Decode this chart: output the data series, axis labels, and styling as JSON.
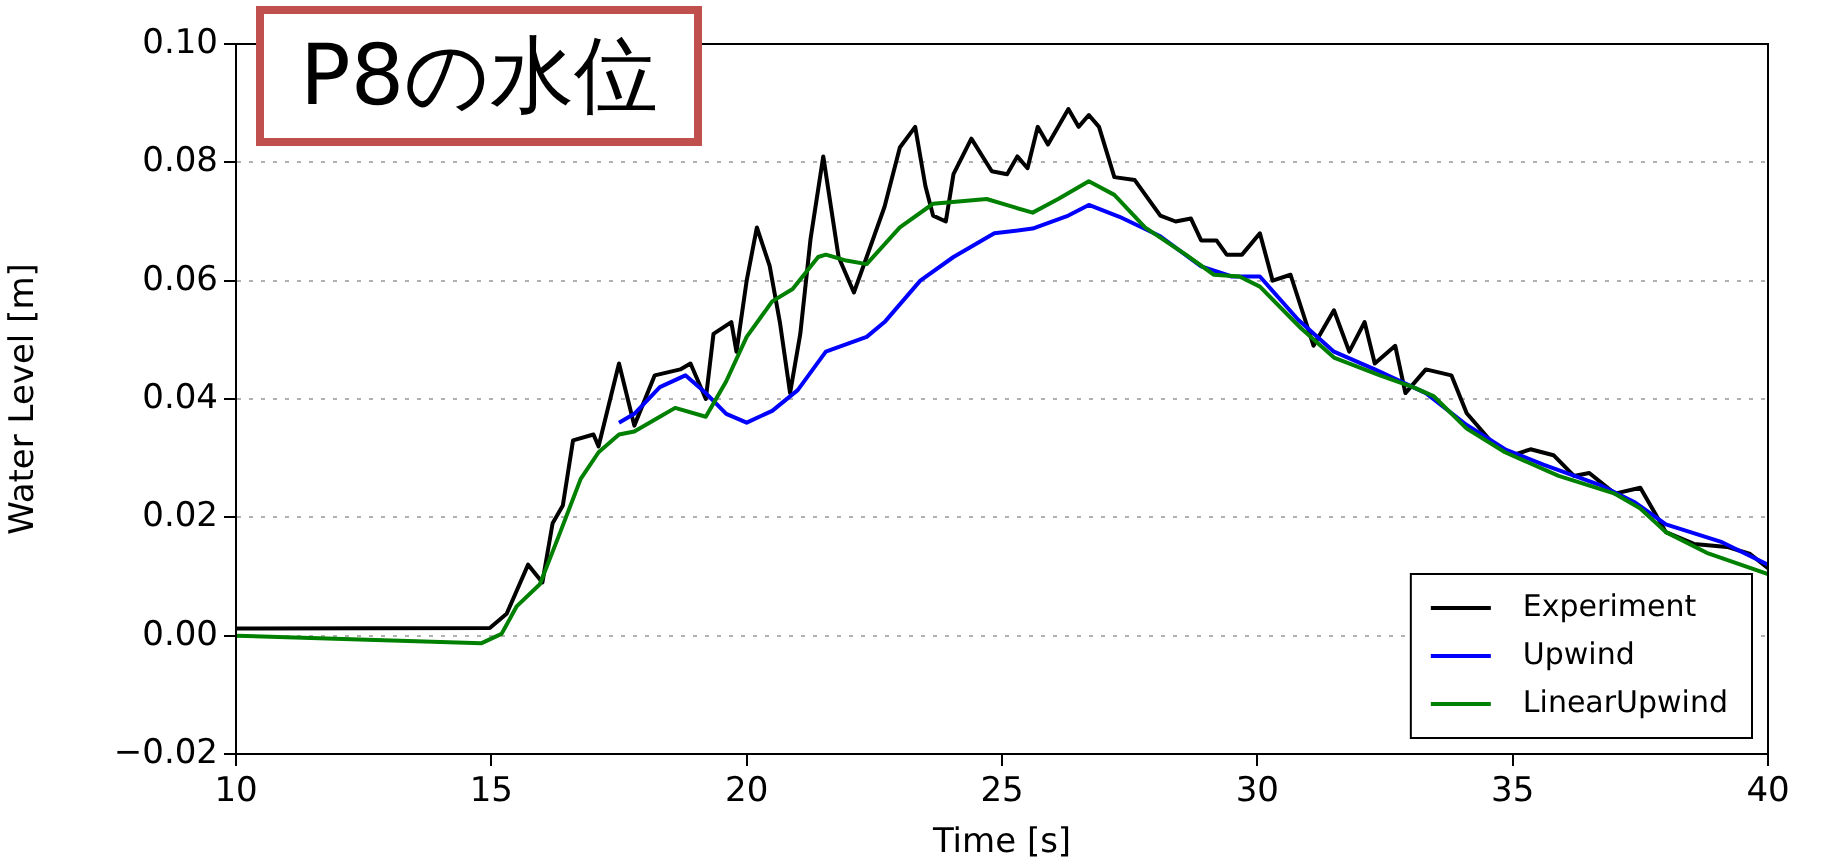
{
  "chart_data": {
    "type": "line",
    "title": "P8の水位",
    "xlabel": "Time [s]",
    "ylabel": "Water Level [m]",
    "xlim": [
      10,
      40
    ],
    "xticks": [
      10,
      15,
      20,
      25,
      30,
      35,
      40
    ],
    "ylim": [
      -0.02,
      0.1
    ],
    "yticks": [
      {
        "value": -0.02,
        "label": "−0.02"
      },
      {
        "value": 0,
        "label": "0.00"
      },
      {
        "value": 0.02,
        "label": "0.02"
      },
      {
        "value": 0.04,
        "label": "0.04"
      },
      {
        "value": 0.06,
        "label": "0.06"
      },
      {
        "value": 0.08,
        "label": "0.08"
      },
      {
        "value": 0.1,
        "label": "0.10"
      }
    ],
    "grid": "y",
    "legend": "bottom right",
    "marker": "none",
    "line_style": "solid",
    "series": [
      {
        "name": "Experiment",
        "color": "#000000",
        "x": [
          10,
          14.97,
          15.3,
          15.72,
          16.0,
          16.2,
          16.4,
          16.6,
          17.0,
          17.1,
          17.5,
          17.8,
          18.2,
          18.7,
          18.9,
          19.2,
          19.35,
          19.7,
          19.8,
          20.0,
          20.2,
          20.45,
          20.65,
          20.85,
          21.05,
          21.25,
          21.5,
          21.8,
          22.1,
          22.35,
          22.7,
          23.0,
          23.3,
          23.5,
          23.65,
          23.9,
          24.05,
          24.4,
          24.8,
          25.1,
          25.3,
          25.5,
          25.7,
          25.9,
          26.3,
          26.5,
          26.7,
          26.9,
          27.2,
          27.6,
          28.1,
          28.4,
          28.7,
          28.9,
          29.2,
          29.4,
          29.7,
          30.05,
          30.3,
          30.65,
          31.1,
          31.5,
          31.8,
          32.1,
          32.3,
          32.7,
          32.9,
          33.3,
          33.8,
          34.1,
          34.6,
          35.0,
          35.35,
          35.8,
          36.2,
          36.5,
          37.0,
          37.5,
          38.0,
          38.55,
          39.2,
          39.65,
          40
        ],
        "values": [
          0.0012,
          0.0013,
          0.0037,
          0.012,
          0.009,
          0.019,
          0.022,
          0.033,
          0.034,
          0.032,
          0.046,
          0.0355,
          0.044,
          0.045,
          0.046,
          0.04,
          0.051,
          0.053,
          0.048,
          0.06,
          0.069,
          0.0625,
          0.053,
          0.041,
          0.051,
          0.067,
          0.081,
          0.064,
          0.058,
          0.064,
          0.0725,
          0.0825,
          0.086,
          0.076,
          0.071,
          0.07,
          0.078,
          0.084,
          0.0785,
          0.078,
          0.081,
          0.079,
          0.086,
          0.083,
          0.089,
          0.086,
          0.088,
          0.086,
          0.0775,
          0.077,
          0.071,
          0.07,
          0.0705,
          0.0668,
          0.0668,
          0.0644,
          0.0644,
          0.068,
          0.06,
          0.061,
          0.049,
          0.055,
          0.048,
          0.053,
          0.046,
          0.049,
          0.041,
          0.045,
          0.044,
          0.0376,
          0.0326,
          0.0305,
          0.0315,
          0.0305,
          0.027,
          0.0275,
          0.024,
          0.025,
          0.0175,
          0.0155,
          0.015,
          0.0138,
          0.0114
        ]
      },
      {
        "name": "Upwind",
        "color": "#0000ff",
        "x": [
          17.5,
          17.8,
          18.3,
          18.8,
          19.2,
          19.6,
          20.0,
          20.5,
          21.0,
          21.55,
          22.35,
          22.7,
          23.4,
          24.05,
          24.85,
          25.6,
          26.3,
          26.7,
          27.3,
          28.1,
          28.9,
          29.5,
          30.05,
          30.8,
          31.5,
          32.3,
          32.9,
          33.3,
          34.1,
          34.85,
          35.6,
          36.7,
          37.4,
          38.0,
          39.1,
          40
        ],
        "values": [
          0.036,
          0.0375,
          0.042,
          0.044,
          0.041,
          0.0375,
          0.036,
          0.038,
          0.0415,
          0.048,
          0.0505,
          0.053,
          0.06,
          0.064,
          0.068,
          0.0688,
          0.071,
          0.0728,
          0.0708,
          0.0675,
          0.0624,
          0.0607,
          0.0607,
          0.0534,
          0.048,
          0.045,
          0.0426,
          0.041,
          0.0356,
          0.0315,
          0.0289,
          0.0255,
          0.0225,
          0.0188,
          0.0158,
          0.012
        ]
      },
      {
        "name": "LinearUpwind",
        "color": "#008000",
        "x": [
          10,
          14.8,
          15.2,
          15.5,
          15.95,
          16.35,
          16.75,
          17.1,
          17.5,
          17.8,
          18.3,
          18.6,
          19.2,
          19.6,
          20.0,
          20.5,
          20.9,
          21.4,
          21.55,
          21.95,
          22.35,
          23.0,
          23.65,
          24.7,
          25.2,
          25.6,
          26.1,
          26.7,
          27.2,
          27.8,
          28.6,
          29.15,
          29.65,
          30.05,
          30.85,
          31.5,
          32.4,
          33.05,
          33.45,
          34.1,
          34.85,
          35.9,
          37.0,
          37.5,
          38.0,
          38.8,
          40
        ],
        "values": [
          0.0,
          -0.0013,
          0.0003,
          0.005,
          0.0087,
          0.0175,
          0.0265,
          0.031,
          0.034,
          0.0345,
          0.037,
          0.0385,
          0.037,
          0.043,
          0.0505,
          0.0565,
          0.0586,
          0.064,
          0.0644,
          0.0634,
          0.0628,
          0.069,
          0.073,
          0.0738,
          0.0725,
          0.0715,
          0.0738,
          0.0768,
          0.0745,
          0.069,
          0.0644,
          0.061,
          0.0607,
          0.059,
          0.052,
          0.047,
          0.044,
          0.042,
          0.0405,
          0.035,
          0.031,
          0.027,
          0.024,
          0.0215,
          0.0175,
          0.014,
          0.0104
        ]
      }
    ]
  }
}
